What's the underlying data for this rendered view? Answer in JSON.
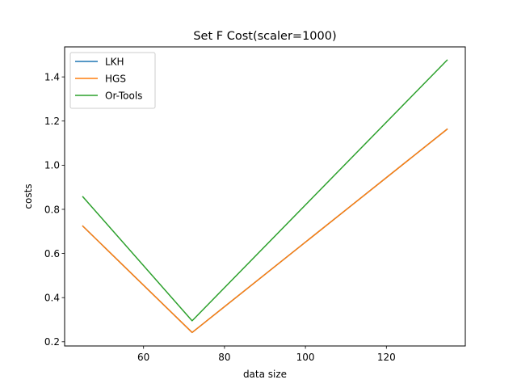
{
  "chart_data": {
    "type": "line",
    "title": "Set F Cost(scaler=1000)",
    "xlabel": "data size",
    "ylabel": "costs",
    "xlim": [
      40.5,
      139.5
    ],
    "ylim": [
      0.181,
      1.536
    ],
    "xticks": [
      60,
      80,
      100,
      120
    ],
    "yticks": [
      0.2,
      0.4,
      0.6,
      0.8,
      1.0,
      1.2,
      1.4
    ],
    "ytick_labels": [
      "0.2",
      "0.4",
      "0.6",
      "0.8",
      "1.0",
      "1.2",
      "1.4"
    ],
    "grid": false,
    "legend_position": "top-left",
    "x": [
      45,
      72,
      135
    ],
    "series": [
      {
        "name": "LKH",
        "color": "#1f77b4",
        "values": [
          0.724,
          0.242,
          1.163
        ]
      },
      {
        "name": "HGS",
        "color": "#ff7f0e",
        "values": [
          0.724,
          0.242,
          1.163
        ]
      },
      {
        "name": "Or-Tools",
        "color": "#2ca02c",
        "values": [
          0.857,
          0.295,
          1.476
        ]
      }
    ]
  }
}
